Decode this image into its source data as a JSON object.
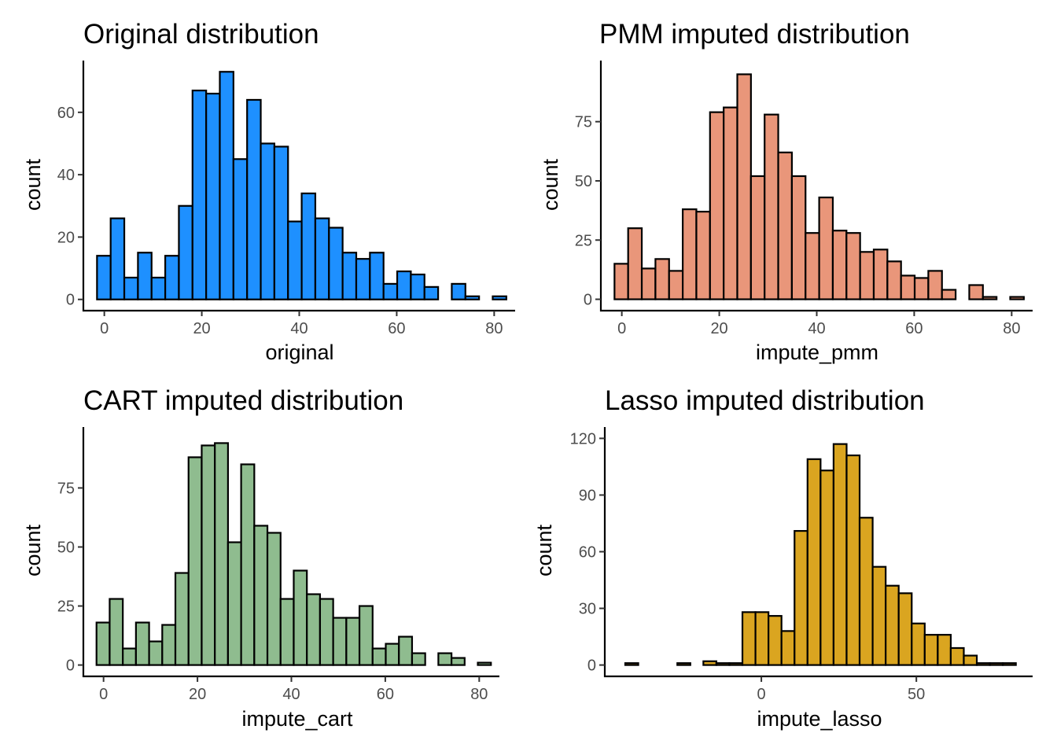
{
  "chart_data": [
    {
      "type": "bar",
      "title": "Original distribution",
      "xlabel": "original",
      "ylabel": "count",
      "fill": "#1e90ff",
      "xlim": [
        -4.3,
        84.3
      ],
      "ylim": [
        -3.6,
        76.6
      ],
      "xticks": [
        0,
        20,
        40,
        60,
        80
      ],
      "yticks": [
        0,
        20,
        40,
        60
      ],
      "bin_start": -1.5,
      "bin_width": 2.8,
      "values": [
        14,
        26,
        7,
        15,
        7,
        14,
        30,
        67,
        66,
        73,
        45,
        64,
        50,
        49,
        25,
        34,
        26,
        23,
        15,
        13,
        15,
        5,
        9,
        8,
        4,
        0,
        5,
        1,
        0,
        1
      ]
    },
    {
      "type": "bar",
      "title": "PMM imputed distribution",
      "xlabel": "impute_pmm",
      "ylabel": "count",
      "fill": "#e9967a",
      "xlim": [
        -4.3,
        84.3
      ],
      "ylim": [
        -4.8,
        100.8
      ],
      "xticks": [
        0,
        20,
        40,
        60,
        80
      ],
      "yticks": [
        0,
        25,
        50,
        75
      ],
      "bin_start": -1.5,
      "bin_width": 2.8,
      "values": [
        15,
        30,
        13,
        17,
        12,
        38,
        37,
        79,
        81,
        95,
        52,
        78,
        62,
        52,
        28,
        43,
        29,
        28,
        20,
        21,
        16,
        10,
        9,
        12,
        4,
        0,
        6,
        1,
        0,
        1
      ]
    },
    {
      "type": "bar",
      "title": "CART imputed distribution",
      "xlabel": "impute_cart",
      "ylabel": "count",
      "fill": "#8fbc8f",
      "xlim": [
        -4.3,
        84.3
      ],
      "ylim": [
        -4.8,
        100.8
      ],
      "xticks": [
        0,
        20,
        40,
        60,
        80
      ],
      "yticks": [
        0,
        25,
        50,
        75
      ],
      "bin_start": -1.5,
      "bin_width": 2.8,
      "values": [
        18,
        28,
        7,
        18,
        10,
        17,
        39,
        88,
        93,
        94,
        52,
        85,
        59,
        56,
        28,
        40,
        30,
        28,
        20,
        20,
        25,
        7,
        9,
        12,
        5,
        0,
        5,
        3,
        0,
        1
      ]
    },
    {
      "type": "bar",
      "title": "Lasso imputed distribution",
      "xlabel": "impute_lasso",
      "ylabel": "count",
      "fill": "#daa520",
      "xlim": [
        -50.5,
        87.5
      ],
      "ylim": [
        -6.0,
        126.0
      ],
      "xticks": [
        0,
        50
      ],
      "yticks": [
        0,
        30,
        60,
        90,
        120
      ],
      "bin_start": -43.9,
      "bin_width": 4.2,
      "values": [
        1,
        0,
        0,
        0,
        1,
        0,
        2,
        1,
        1,
        28,
        28,
        26,
        18,
        71,
        109,
        103,
        117,
        111,
        78,
        52,
        42,
        38,
        22,
        16,
        16,
        9,
        5,
        1,
        1,
        1
      ]
    }
  ]
}
